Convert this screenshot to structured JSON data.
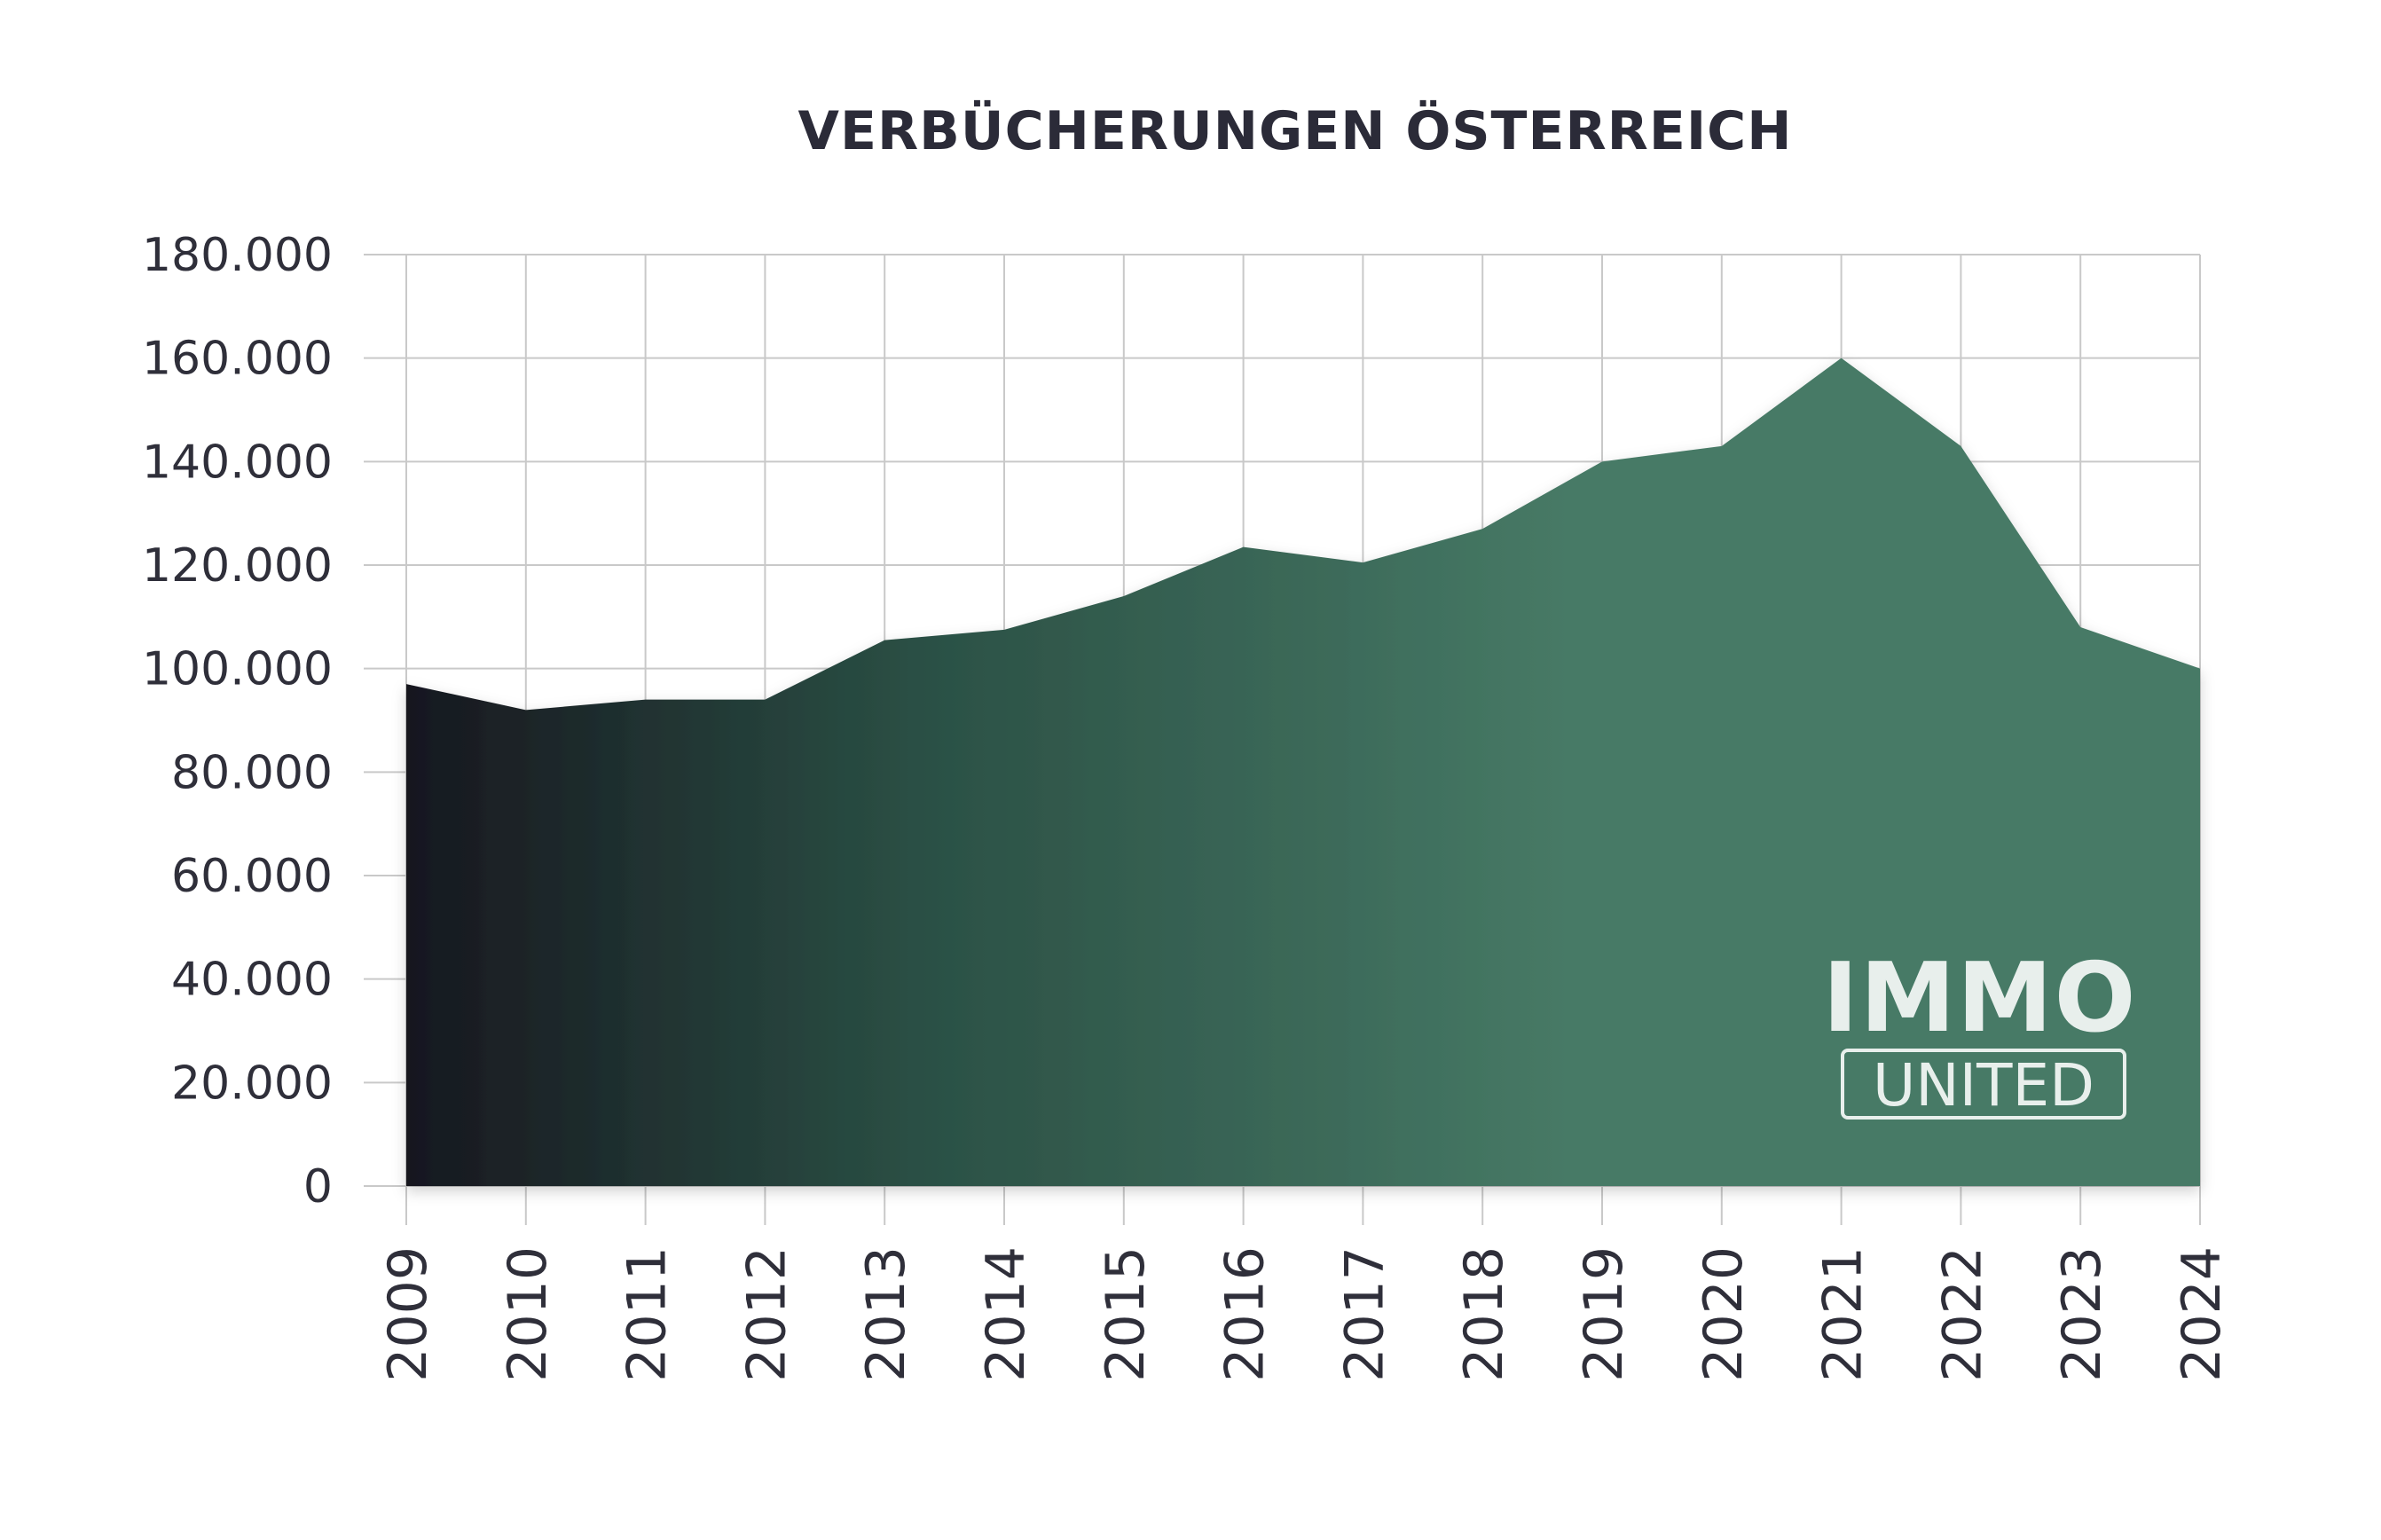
{
  "colors": {
    "area_start": "#17171f",
    "area_mid": "#2a4f44",
    "area_end": "#477a66",
    "grid": "#c9c9c9",
    "text": "#2f2f3a"
  },
  "logo": {
    "line1": "IMMO",
    "line2": "UNITED"
  },
  "chart_data": {
    "type": "area",
    "title": "VERBÜCHERUNGEN ÖSTERREICH",
    "xlabel": "",
    "ylabel": "",
    "categories": [
      "2009",
      "2010",
      "2011",
      "2012",
      "2013",
      "2014",
      "2015",
      "2016",
      "2017",
      "2018",
      "2019",
      "2020",
      "2021",
      "2022",
      "2023",
      "2024"
    ],
    "series": [
      {
        "values": [
          97000,
          92000,
          94000,
          94000,
          105500,
          107500,
          114000,
          123500,
          120500,
          127000,
          140000,
          143000,
          160000,
          143000,
          108000,
          100000
        ]
      }
    ],
    "ylim": [
      0,
      180000
    ],
    "yticks": [
      0,
      20000,
      40000,
      60000,
      80000,
      100000,
      120000,
      140000,
      160000,
      180000
    ],
    "ytick_labels": [
      "0",
      "20.000",
      "40.000",
      "60.000",
      "80.000",
      "100.000",
      "120.000",
      "140.000",
      "160.000",
      "180.000"
    ],
    "grid": true,
    "legend": "none"
  }
}
